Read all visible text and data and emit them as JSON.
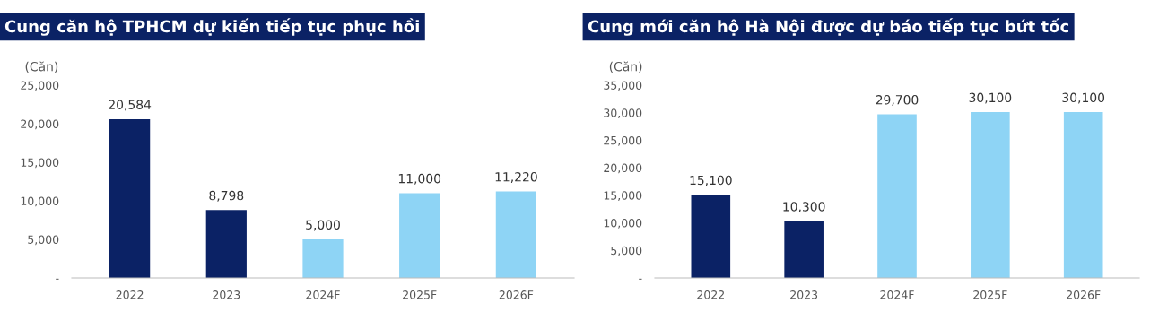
{
  "chart_data": [
    {
      "type": "bar",
      "title": "Cung căn hộ TPHCM dự kiến tiếp tục phục hồi",
      "ylabel": "(Căn)",
      "categories": [
        "2022",
        "2023",
        "2024F",
        "2025F",
        "2026F"
      ],
      "values": [
        20584,
        8798,
        5000,
        11000,
        11220
      ],
      "colors": [
        "#0b2265",
        "#0b2265",
        "#8ed4f5",
        "#8ed4f5",
        "#8ed4f5"
      ],
      "value_labels": [
        "20,584",
        "8,798",
        "5,000",
        "11,000",
        "11,220"
      ],
      "ylim": [
        0,
        25000
      ],
      "yticks": [
        {
          "value": 0,
          "label": "-"
        },
        {
          "value": 5000,
          "label": "5,000"
        },
        {
          "value": 10000,
          "label": "10,000"
        },
        {
          "value": 15000,
          "label": "15,000"
        },
        {
          "value": 20000,
          "label": "20,000"
        },
        {
          "value": 25000,
          "label": "25,000"
        }
      ],
      "grid": false,
      "legend": false
    },
    {
      "type": "bar",
      "title": "Cung mới căn hộ Hà Nội được dự báo tiếp tục bứt tốc",
      "ylabel": "(Căn)",
      "categories": [
        "2022",
        "2023",
        "2024F",
        "2025F",
        "2026F"
      ],
      "values": [
        15100,
        10300,
        29700,
        30100,
        30100
      ],
      "colors": [
        "#0b2265",
        "#0b2265",
        "#8ed4f5",
        "#8ed4f5",
        "#8ed4f5"
      ],
      "value_labels": [
        "15,100",
        "10,300",
        "29,700",
        "30,100",
        "30,100"
      ],
      "ylim": [
        0,
        35000
      ],
      "yticks": [
        {
          "value": 0,
          "label": "-"
        },
        {
          "value": 5000,
          "label": "5,000"
        },
        {
          "value": 10000,
          "label": "10,000"
        },
        {
          "value": 15000,
          "label": "15,000"
        },
        {
          "value": 20000,
          "label": "20,000"
        },
        {
          "value": 25000,
          "label": "25,000"
        },
        {
          "value": 30000,
          "label": "30,000"
        },
        {
          "value": 35000,
          "label": "35,000"
        }
      ],
      "grid": false,
      "legend": false
    }
  ]
}
